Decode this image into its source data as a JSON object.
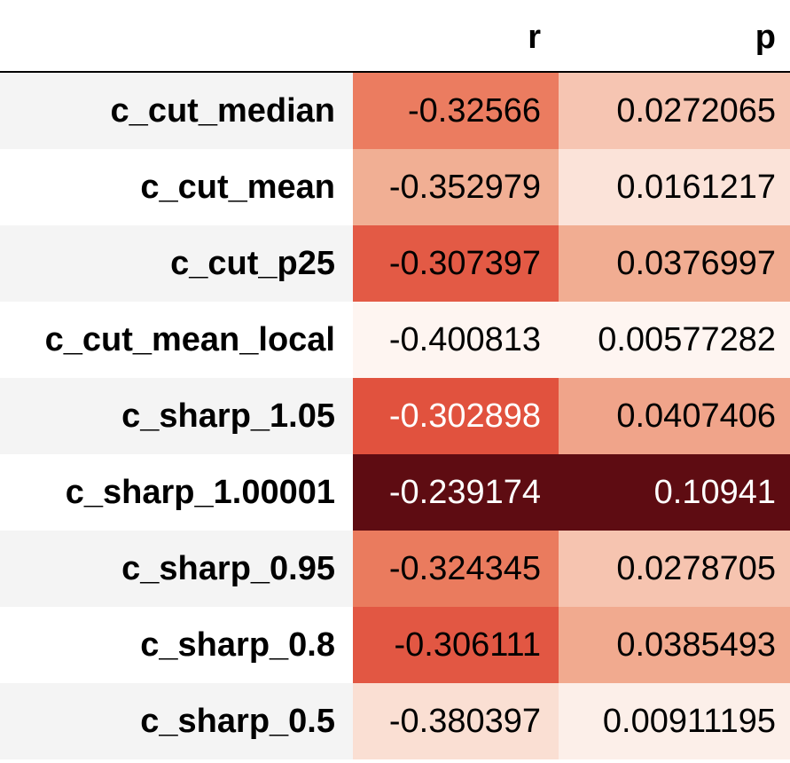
{
  "chart_data": {
    "type": "table",
    "columns": [
      "r",
      "p"
    ],
    "rows": [
      {
        "label": "c_cut_median",
        "r": "-0.32566",
        "p": "0.0272065",
        "r_color": "#eb7c60",
        "p_color": "#f6c5b2",
        "r_text": "#000000",
        "p_text": "#000000"
      },
      {
        "label": "c_cut_mean",
        "r": "-0.352979",
        "p": "0.0161217",
        "r_color": "#f1af94",
        "p_color": "#fbe3d9",
        "r_text": "#000000",
        "p_text": "#000000"
      },
      {
        "label": "c_cut_p25",
        "r": "-0.307397",
        "p": "0.0376997",
        "r_color": "#e35a45",
        "p_color": "#f1ad92",
        "r_text": "#000000",
        "p_text": "#000000"
      },
      {
        "label": "c_cut_mean_local",
        "r": "-0.400813",
        "p": "0.00577282",
        "r_color": "#fef5f1",
        "p_color": "#fef5f1",
        "r_text": "#000000",
        "p_text": "#000000"
      },
      {
        "label": "c_sharp_1.05",
        "r": "-0.302898",
        "p": "0.0407406",
        "r_color": "#e1523e",
        "p_color": "#f0a48a",
        "r_text": "#ffffff",
        "p_text": "#000000"
      },
      {
        "label": "c_sharp_1.00001",
        "r": "-0.239174",
        "p": "0.10941",
        "r_color": "#5e0c12",
        "p_color": "#5e0c12",
        "r_text": "#ffffff",
        "p_text": "#ffffff"
      },
      {
        "label": "c_sharp_0.95",
        "r": "-0.324345",
        "p": "0.0278705",
        "r_color": "#ea7b5e",
        "p_color": "#f6c4b0",
        "r_text": "#000000",
        "p_text": "#000000"
      },
      {
        "label": "c_sharp_0.8",
        "r": "-0.306111",
        "p": "0.0385493",
        "r_color": "#e25743",
        "p_color": "#f1aa8f",
        "r_text": "#000000",
        "p_text": "#000000"
      },
      {
        "label": "c_sharp_0.5",
        "r": "-0.380397",
        "p": "0.00911195",
        "r_color": "#fadfd3",
        "p_color": "#fcefe9",
        "r_text": "#000000",
        "p_text": "#000000"
      }
    ],
    "row_stripe_colors": [
      "#f4f4f4",
      "#ffffff"
    ]
  }
}
